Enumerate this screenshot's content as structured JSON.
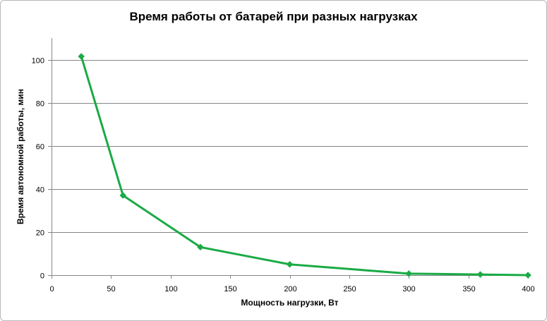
{
  "chart_data": {
    "type": "line",
    "title": "Время работы  от батарей  при разных  нагрузках",
    "xlabel": "Мощность нагрузки, Вт",
    "ylabel": "Время автономной работы, мин",
    "x": [
      25,
      60,
      125,
      200,
      300,
      360,
      400
    ],
    "series": [
      {
        "values": [
          101.5,
          37,
          13,
          5,
          0.7,
          0.3,
          0
        ],
        "color": "#1aab45",
        "marker": "diamond"
      }
    ],
    "xlim": [
      0,
      400
    ],
    "ylim": [
      0,
      110
    ],
    "xticks": [
      0,
      50,
      100,
      150,
      200,
      250,
      300,
      350,
      400
    ],
    "yticks": [
      0,
      20,
      40,
      60,
      80,
      100
    ],
    "grid": "horizontal",
    "legend": "none"
  }
}
